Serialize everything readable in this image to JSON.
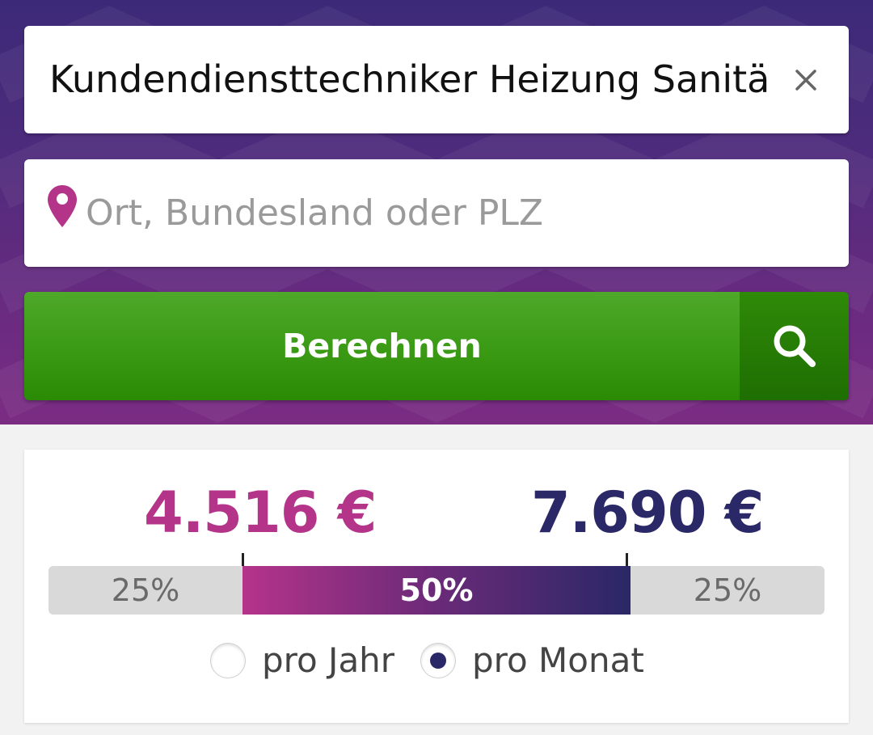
{
  "search": {
    "job_value": "Kundendiensttechniker Heizung Sanitär",
    "clear_icon": "close-icon",
    "location_placeholder": "Ort, Bundesland oder PLZ",
    "location_value": "",
    "location_icon": "map-pin-icon",
    "submit_label": "Berechnen",
    "submit_icon": "search-icon"
  },
  "result": {
    "salary_low": "4.516 €",
    "salary_high": "7.690 €",
    "distribution": {
      "left_label": "25%",
      "middle_label": "50%",
      "right_label": "25%"
    },
    "period_options": [
      {
        "label": "pro Jahr",
        "selected": false
      },
      {
        "label": "pro Monat",
        "selected": true
      }
    ]
  },
  "colors": {
    "accent_magenta": "#b4348a",
    "accent_navy": "#2a2867",
    "button_green": "#3a9a14",
    "hero_purple": "#5a2b7e"
  }
}
